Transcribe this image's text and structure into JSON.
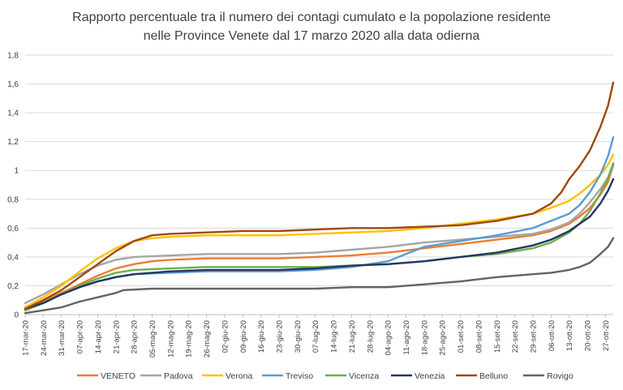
{
  "chart_data": {
    "type": "line",
    "title": "Rapporto percentuale tra il numero dei contagi cumulato e la popolazione residente nelle Province Venete dal 17 marzo 2020 alla data odierna",
    "title_lines": [
      "Rapporto percentuale tra il numero dei contagi cumulato e la popolazione residente",
      "nelle Province Venete dal 17 marzo 2020 alla data odierna"
    ],
    "xlabel": "",
    "ylabel": "",
    "ylim": [
      0,
      1.8
    ],
    "yticks": [
      0,
      0.2,
      0.4,
      0.6,
      0.8,
      1,
      1.2,
      1.4,
      1.6,
      1.8
    ],
    "ytick_labels": [
      "0",
      "0,2",
      "0,4",
      "0,6",
      "0,8",
      "1",
      "1,2",
      "1,4",
      "1,6",
      "1,8"
    ],
    "grid": true,
    "legend_position": "bottom",
    "x_start": "17-mar-20",
    "x_days": 227,
    "categories": [
      "17-mar-20",
      "24-mar-20",
      "31-mar-20",
      "07-apr-20",
      "14-apr-20",
      "21-apr-20",
      "28-apr-20",
      "05-mag-20",
      "12-mag-20",
      "19-mag-20",
      "26-mag-20",
      "02-giu-20",
      "09-giu-20",
      "16-giu-20",
      "23-giu-20",
      "30-giu-20",
      "07-lug-20",
      "14-lug-20",
      "21-lug-20",
      "28-lug-20",
      "04-ago-20",
      "11-ago-20",
      "18-ago-20",
      "25-ago-20",
      "01-set-20",
      "08-set-20",
      "15-set-20",
      "22-set-20",
      "29-set-20",
      "06-ott-20",
      "13-ott-20",
      "20-ott-20",
      "27-ott-20"
    ],
    "series": [
      {
        "name": "VENETO",
        "color": "#ed7d31",
        "points": [
          [
            0,
            0.04
          ],
          [
            7,
            0.09
          ],
          [
            14,
            0.15
          ],
          [
            21,
            0.21
          ],
          [
            28,
            0.27
          ],
          [
            35,
            0.32
          ],
          [
            42,
            0.35
          ],
          [
            49,
            0.37
          ],
          [
            56,
            0.38
          ],
          [
            70,
            0.39
          ],
          [
            84,
            0.39
          ],
          [
            98,
            0.39
          ],
          [
            112,
            0.4
          ],
          [
            126,
            0.41
          ],
          [
            140,
            0.43
          ],
          [
            154,
            0.46
          ],
          [
            168,
            0.49
          ],
          [
            182,
            0.52
          ],
          [
            196,
            0.55
          ],
          [
            203,
            0.58
          ],
          [
            210,
            0.63
          ],
          [
            214,
            0.68
          ],
          [
            218,
            0.74
          ],
          [
            222,
            0.83
          ],
          [
            225,
            0.92
          ],
          [
            227,
            1.04
          ]
        ]
      },
      {
        "name": "Padova",
        "color": "#a5a5a5",
        "points": [
          [
            0,
            0.08
          ],
          [
            7,
            0.14
          ],
          [
            14,
            0.21
          ],
          [
            21,
            0.28
          ],
          [
            28,
            0.34
          ],
          [
            35,
            0.38
          ],
          [
            42,
            0.4
          ],
          [
            56,
            0.41
          ],
          [
            70,
            0.42
          ],
          [
            84,
            0.42
          ],
          [
            98,
            0.42
          ],
          [
            112,
            0.43
          ],
          [
            126,
            0.45
          ],
          [
            140,
            0.47
          ],
          [
            154,
            0.5
          ],
          [
            168,
            0.52
          ],
          [
            182,
            0.54
          ],
          [
            196,
            0.56
          ],
          [
            203,
            0.59
          ],
          [
            210,
            0.64
          ],
          [
            214,
            0.7
          ],
          [
            218,
            0.78
          ],
          [
            222,
            0.87
          ],
          [
            225,
            0.95
          ],
          [
            227,
            1.03
          ]
        ]
      },
      {
        "name": "Verona",
        "color": "#ffc000",
        "points": [
          [
            0,
            0.05
          ],
          [
            7,
            0.12
          ],
          [
            14,
            0.2
          ],
          [
            21,
            0.3
          ],
          [
            28,
            0.39
          ],
          [
            35,
            0.46
          ],
          [
            42,
            0.51
          ],
          [
            49,
            0.53
          ],
          [
            56,
            0.54
          ],
          [
            70,
            0.55
          ],
          [
            84,
            0.55
          ],
          [
            98,
            0.55
          ],
          [
            112,
            0.56
          ],
          [
            126,
            0.57
          ],
          [
            140,
            0.58
          ],
          [
            154,
            0.6
          ],
          [
            168,
            0.63
          ],
          [
            182,
            0.66
          ],
          [
            196,
            0.7
          ],
          [
            203,
            0.74
          ],
          [
            210,
            0.79
          ],
          [
            214,
            0.84
          ],
          [
            218,
            0.9
          ],
          [
            222,
            0.97
          ],
          [
            225,
            1.04
          ],
          [
            227,
            1.11
          ]
        ]
      },
      {
        "name": "Treviso",
        "color": "#5b9bd5",
        "points": [
          [
            0,
            0.03
          ],
          [
            7,
            0.08
          ],
          [
            14,
            0.14
          ],
          [
            21,
            0.19
          ],
          [
            28,
            0.23
          ],
          [
            35,
            0.26
          ],
          [
            42,
            0.28
          ],
          [
            56,
            0.29
          ],
          [
            70,
            0.3
          ],
          [
            84,
            0.3
          ],
          [
            98,
            0.3
          ],
          [
            112,
            0.31
          ],
          [
            126,
            0.33
          ],
          [
            140,
            0.37
          ],
          [
            147,
            0.42
          ],
          [
            154,
            0.47
          ],
          [
            168,
            0.51
          ],
          [
            182,
            0.55
          ],
          [
            196,
            0.6
          ],
          [
            203,
            0.65
          ],
          [
            210,
            0.7
          ],
          [
            214,
            0.76
          ],
          [
            218,
            0.85
          ],
          [
            222,
            0.97
          ],
          [
            225,
            1.1
          ],
          [
            227,
            1.23
          ]
        ]
      },
      {
        "name": "Vicenza",
        "color": "#70ad47",
        "points": [
          [
            0,
            0.03
          ],
          [
            7,
            0.08
          ],
          [
            14,
            0.14
          ],
          [
            21,
            0.2
          ],
          [
            28,
            0.25
          ],
          [
            35,
            0.29
          ],
          [
            42,
            0.31
          ],
          [
            56,
            0.32
          ],
          [
            70,
            0.33
          ],
          [
            84,
            0.33
          ],
          [
            98,
            0.33
          ],
          [
            112,
            0.33
          ],
          [
            126,
            0.34
          ],
          [
            140,
            0.35
          ],
          [
            154,
            0.37
          ],
          [
            168,
            0.4
          ],
          [
            182,
            0.42
          ],
          [
            196,
            0.46
          ],
          [
            203,
            0.5
          ],
          [
            210,
            0.57
          ],
          [
            214,
            0.63
          ],
          [
            218,
            0.72
          ],
          [
            222,
            0.84
          ],
          [
            225,
            0.95
          ],
          [
            227,
            1.05
          ]
        ]
      },
      {
        "name": "Venezia",
        "color": "#203864",
        "points": [
          [
            0,
            0.04
          ],
          [
            7,
            0.08
          ],
          [
            14,
            0.14
          ],
          [
            21,
            0.19
          ],
          [
            28,
            0.23
          ],
          [
            35,
            0.26
          ],
          [
            42,
            0.28
          ],
          [
            56,
            0.3
          ],
          [
            70,
            0.31
          ],
          [
            84,
            0.31
          ],
          [
            98,
            0.31
          ],
          [
            112,
            0.32
          ],
          [
            126,
            0.34
          ],
          [
            140,
            0.35
          ],
          [
            154,
            0.37
          ],
          [
            168,
            0.4
          ],
          [
            182,
            0.43
          ],
          [
            196,
            0.48
          ],
          [
            203,
            0.52
          ],
          [
            210,
            0.58
          ],
          [
            214,
            0.63
          ],
          [
            218,
            0.68
          ],
          [
            222,
            0.77
          ],
          [
            225,
            0.86
          ],
          [
            227,
            0.94
          ]
        ]
      },
      {
        "name": "Belluno",
        "color": "#9e480e",
        "points": [
          [
            0,
            0.04
          ],
          [
            7,
            0.1
          ],
          [
            14,
            0.17
          ],
          [
            21,
            0.26
          ],
          [
            28,
            0.35
          ],
          [
            35,
            0.44
          ],
          [
            42,
            0.51
          ],
          [
            49,
            0.55
          ],
          [
            56,
            0.56
          ],
          [
            70,
            0.57
          ],
          [
            84,
            0.58
          ],
          [
            98,
            0.58
          ],
          [
            112,
            0.59
          ],
          [
            126,
            0.6
          ],
          [
            140,
            0.6
          ],
          [
            154,
            0.61
          ],
          [
            168,
            0.62
          ],
          [
            182,
            0.65
          ],
          [
            196,
            0.7
          ],
          [
            203,
            0.77
          ],
          [
            207,
            0.85
          ],
          [
            210,
            0.94
          ],
          [
            214,
            1.03
          ],
          [
            218,
            1.14
          ],
          [
            222,
            1.3
          ],
          [
            225,
            1.45
          ],
          [
            227,
            1.61
          ]
        ]
      },
      {
        "name": "Rovigo",
        "color": "#636363",
        "points": [
          [
            0,
            0.01
          ],
          [
            7,
            0.03
          ],
          [
            14,
            0.05
          ],
          [
            21,
            0.09
          ],
          [
            28,
            0.12
          ],
          [
            35,
            0.15
          ],
          [
            38,
            0.17
          ],
          [
            49,
            0.18
          ],
          [
            70,
            0.18
          ],
          [
            98,
            0.18
          ],
          [
            112,
            0.18
          ],
          [
            126,
            0.19
          ],
          [
            140,
            0.19
          ],
          [
            154,
            0.21
          ],
          [
            168,
            0.23
          ],
          [
            182,
            0.26
          ],
          [
            196,
            0.28
          ],
          [
            203,
            0.29
          ],
          [
            210,
            0.31
          ],
          [
            214,
            0.33
          ],
          [
            218,
            0.36
          ],
          [
            222,
            0.42
          ],
          [
            225,
            0.47
          ],
          [
            227,
            0.53
          ]
        ]
      }
    ]
  }
}
